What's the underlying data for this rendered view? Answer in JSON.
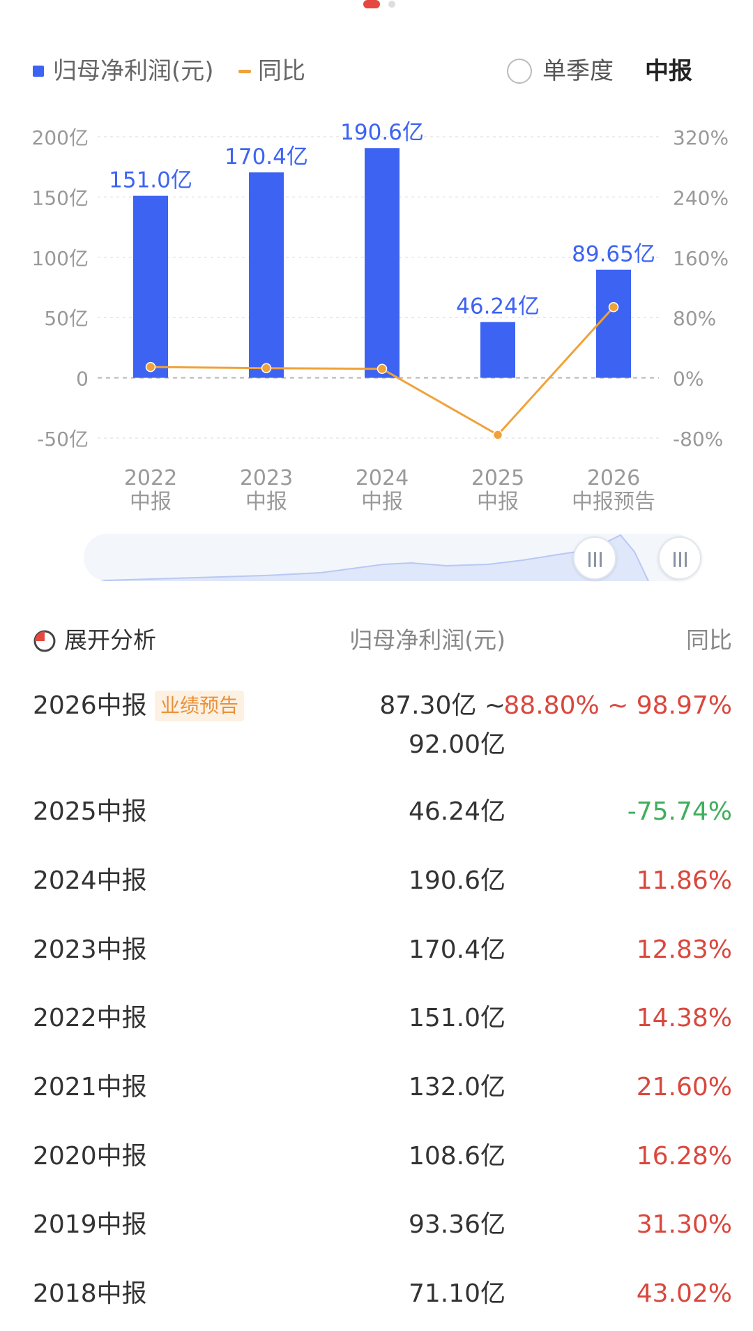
{
  "pager": {
    "count": 2,
    "active": 0
  },
  "legend": {
    "bar_label": "归母净利润(元)",
    "line_label": "同比",
    "single_quarter_label": "单季度",
    "mid_report_label": "中报"
  },
  "colors": {
    "bar": "#3d63f2",
    "line": "#f0a23a",
    "positive": "#d9473d",
    "negative": "#3fae5b",
    "badge_bg": "#fdf1e3",
    "badge_text": "#e8913a"
  },
  "chart_data": {
    "type": "bar",
    "categories": [
      "2022\n中报",
      "2023\n中报",
      "2024\n中报",
      "2025\n中报",
      "2026\n中报预告"
    ],
    "series": [
      {
        "name": "归母净利润(元)",
        "type": "bar",
        "axis": "left",
        "values": [
          151.0,
          170.4,
          190.6,
          46.24,
          89.65
        ],
        "labels": [
          "151.0亿",
          "170.4亿",
          "190.6亿",
          "46.24亿",
          "89.65亿"
        ]
      },
      {
        "name": "同比",
        "type": "line",
        "axis": "right",
        "values": [
          14.38,
          12.83,
          11.86,
          -75.74,
          93.89
        ]
      }
    ],
    "y_left": {
      "ylim": [
        -50,
        200
      ],
      "ticks": [
        200,
        150,
        100,
        50,
        0,
        -50
      ],
      "tick_labels": [
        "200亿",
        "150亿",
        "100亿",
        "50亿",
        "0",
        "-50亿"
      ]
    },
    "y_right": {
      "ylim": [
        -80,
        320
      ],
      "ticks": [
        320,
        240,
        160,
        80,
        0,
        -80
      ],
      "tick_labels": [
        "320%",
        "240%",
        "160%",
        "80%",
        "0%",
        "-80%"
      ]
    },
    "grid": true
  },
  "table": {
    "expand_label": "展开分析",
    "col_value": "归母净利润(元)",
    "col_yoy": "同比",
    "forecast_badge": "业绩预告",
    "rows": [
      {
        "period": "2026中报",
        "value": "87.30亿 ~",
        "value2": "92.00亿",
        "yoy": "88.80% ~ 98.97%",
        "sign": "pos"
      },
      {
        "period": "2025中报",
        "value": "46.24亿",
        "yoy": "-75.74%",
        "sign": "neg"
      },
      {
        "period": "2024中报",
        "value": "190.6亿",
        "yoy": "11.86%",
        "sign": "pos"
      },
      {
        "period": "2023中报",
        "value": "170.4亿",
        "yoy": "12.83%",
        "sign": "pos"
      },
      {
        "period": "2022中报",
        "value": "151.0亿",
        "yoy": "14.38%",
        "sign": "pos"
      },
      {
        "period": "2021中报",
        "value": "132.0亿",
        "yoy": "21.60%",
        "sign": "pos"
      },
      {
        "period": "2020中报",
        "value": "108.6亿",
        "yoy": "16.28%",
        "sign": "pos"
      },
      {
        "period": "2019中报",
        "value": "93.36亿",
        "yoy": "31.30%",
        "sign": "pos"
      },
      {
        "period": "2018中报",
        "value": "71.10亿",
        "yoy": "43.02%",
        "sign": "pos"
      }
    ]
  }
}
